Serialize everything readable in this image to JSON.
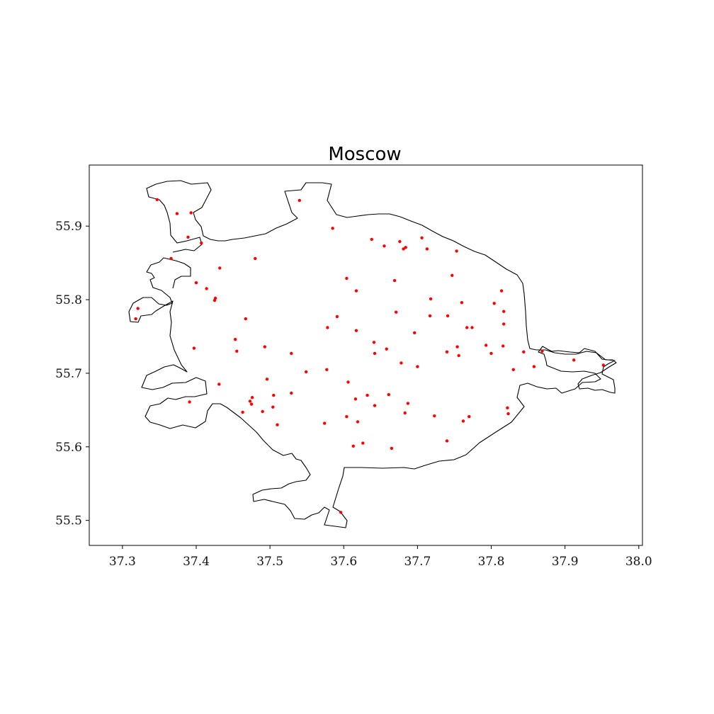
{
  "chart_data": {
    "type": "scatter",
    "title": "Moscow",
    "xlabel": "",
    "ylabel": "",
    "xlim": [
      37.255,
      38.005
    ],
    "ylim": [
      55.466,
      55.983
    ],
    "grid": false,
    "xticks": [
      37.3,
      37.4,
      37.5,
      37.6,
      37.7,
      37.8,
      37.9,
      38.0
    ],
    "xtick_labels": [
      "37.3",
      "37.4",
      "37.5",
      "37.6",
      "37.7",
      "37.8",
      "37.9",
      "38.0"
    ],
    "yticks": [
      55.5,
      55.6,
      55.7,
      55.8,
      55.9
    ],
    "ytick_labels": [
      "55.5",
      "55.6",
      "55.7",
      "55.8",
      "55.9"
    ],
    "point_color": "#ff0000",
    "boundary_color": "#000000",
    "points": [
      [
        37.54,
        55.935
      ],
      [
        37.347,
        55.936
      ],
      [
        37.374,
        55.917
      ],
      [
        37.393,
        55.918
      ],
      [
        37.389,
        55.885
      ],
      [
        37.407,
        55.877
      ],
      [
        37.585,
        55.897
      ],
      [
        37.638,
        55.882
      ],
      [
        37.655,
        55.873
      ],
      [
        37.676,
        55.879
      ],
      [
        37.681,
        55.869
      ],
      [
        37.684,
        55.871
      ],
      [
        37.706,
        55.884
      ],
      [
        37.713,
        55.869
      ],
      [
        37.753,
        55.866
      ],
      [
        37.48,
        55.856
      ],
      [
        37.366,
        55.856
      ],
      [
        37.432,
        55.843
      ],
      [
        37.4,
        55.823
      ],
      [
        37.414,
        55.815
      ],
      [
        37.425,
        55.799
      ],
      [
        37.426,
        55.802
      ],
      [
        37.604,
        55.829
      ],
      [
        37.617,
        55.812
      ],
      [
        37.669,
        55.826
      ],
      [
        37.747,
        55.833
      ],
      [
        37.718,
        55.801
      ],
      [
        37.814,
        55.812
      ],
      [
        37.804,
        55.795
      ],
      [
        37.76,
        55.796
      ],
      [
        37.321,
        55.788
      ],
      [
        37.318,
        55.774
      ],
      [
        37.467,
        55.774
      ],
      [
        37.591,
        55.777
      ],
      [
        37.671,
        55.783
      ],
      [
        37.717,
        55.778
      ],
      [
        37.741,
        55.778
      ],
      [
        37.817,
        55.784
      ],
      [
        37.817,
        55.767
      ],
      [
        37.767,
        55.762
      ],
      [
        37.774,
        55.762
      ],
      [
        37.578,
        55.762
      ],
      [
        37.617,
        55.758
      ],
      [
        37.696,
        55.755
      ],
      [
        37.453,
        55.746
      ],
      [
        37.641,
        55.742
      ],
      [
        37.493,
        55.736
      ],
      [
        37.754,
        55.736
      ],
      [
        37.793,
        55.738
      ],
      [
        37.816,
        55.737
      ],
      [
        37.397,
        55.734
      ],
      [
        37.455,
        55.73
      ],
      [
        37.529,
        55.727
      ],
      [
        37.642,
        55.727
      ],
      [
        37.658,
        55.733
      ],
      [
        37.74,
        55.729
      ],
      [
        37.756,
        55.724
      ],
      [
        37.8,
        55.727
      ],
      [
        37.844,
        55.729
      ],
      [
        37.869,
        55.73
      ],
      [
        37.678,
        55.714
      ],
      [
        37.7,
        55.709
      ],
      [
        37.549,
        55.702
      ],
      [
        37.577,
        55.705
      ],
      [
        37.83,
        55.705
      ],
      [
        37.858,
        55.709
      ],
      [
        37.912,
        55.718
      ],
      [
        37.952,
        55.711
      ],
      [
        37.496,
        55.692
      ],
      [
        37.431,
        55.685
      ],
      [
        37.606,
        55.688
      ],
      [
        37.476,
        55.667
      ],
      [
        37.505,
        55.67
      ],
      [
        37.529,
        55.673
      ],
      [
        37.632,
        55.67
      ],
      [
        37.661,
        55.671
      ],
      [
        37.473,
        55.662
      ],
      [
        37.475,
        55.658
      ],
      [
        37.504,
        55.654
      ],
      [
        37.616,
        55.665
      ],
      [
        37.642,
        55.656
      ],
      [
        37.687,
        55.659
      ],
      [
        37.391,
        55.661
      ],
      [
        37.463,
        55.647
      ],
      [
        37.49,
        55.648
      ],
      [
        37.683,
        55.646
      ],
      [
        37.604,
        55.641
      ],
      [
        37.619,
        55.634
      ],
      [
        37.723,
        55.642
      ],
      [
        37.77,
        55.641
      ],
      [
        37.762,
        55.635
      ],
      [
        37.822,
        55.653
      ],
      [
        37.823,
        55.645
      ],
      [
        37.51,
        55.63
      ],
      [
        37.574,
        55.632
      ],
      [
        37.626,
        55.605
      ],
      [
        37.613,
        55.601
      ],
      [
        37.665,
        55.598
      ],
      [
        37.74,
        55.608
      ],
      [
        37.596,
        55.511
      ]
    ]
  }
}
